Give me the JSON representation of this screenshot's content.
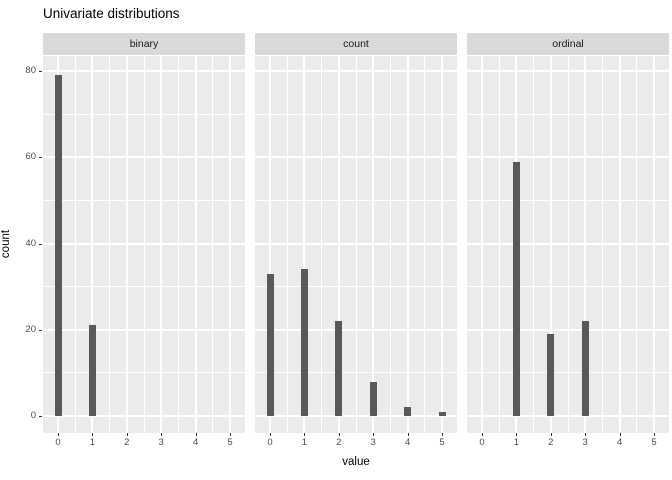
{
  "title": "Univariate distributions",
  "chart_data": {
    "type": "bar",
    "title": "Univariate distributions",
    "xlabel": "value",
    "ylabel": "count",
    "x_ticks": [
      0,
      1,
      2,
      3,
      4,
      5
    ],
    "y_ticks": [
      0,
      20,
      40,
      60,
      80
    ],
    "ylim": [
      0,
      80
    ],
    "xlim": [
      0,
      5
    ],
    "grid": "on",
    "legend": "none",
    "style": "ggplot2-facets",
    "categories": [
      0,
      1,
      2,
      3,
      4,
      5
    ],
    "facets": [
      {
        "label": "binary",
        "values": [
          79,
          21,
          0,
          0,
          0,
          0
        ]
      },
      {
        "label": "count",
        "values": [
          33,
          34,
          22,
          8,
          2,
          1
        ]
      },
      {
        "label": "ordinal",
        "values": [
          0,
          59,
          19,
          22,
          0,
          0
        ]
      }
    ]
  },
  "colors": {
    "bar_fill": "#595959",
    "panel_background": "#ebebeb",
    "strip_background": "#d9d9d9",
    "gridline": "#ffffff",
    "tick_label": "#4d4d4d",
    "text": "#000000",
    "page_background": "#ffffff"
  }
}
